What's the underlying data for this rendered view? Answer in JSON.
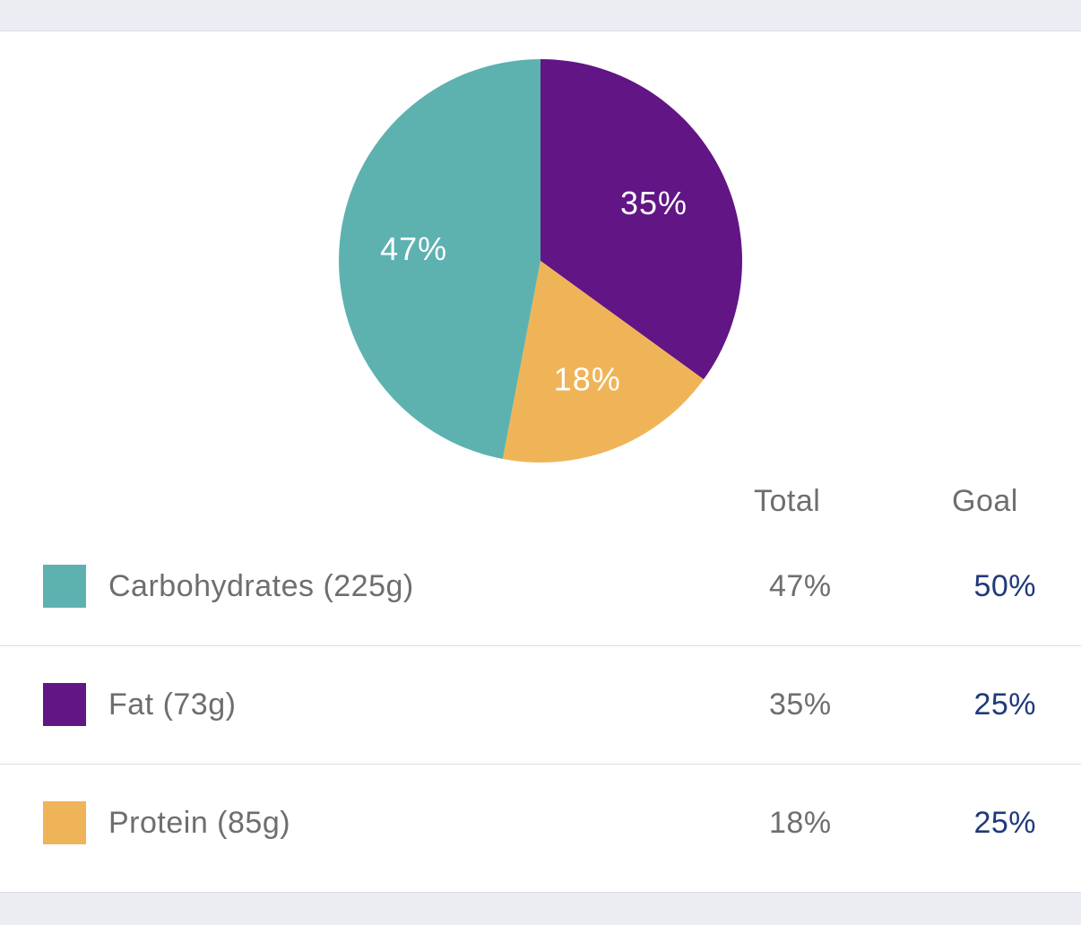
{
  "chart_data": {
    "type": "pie",
    "slices": [
      {
        "label": "Fat",
        "value": 35,
        "display": "35%",
        "color": "#621585"
      },
      {
        "label": "Protein",
        "value": 18,
        "display": "18%",
        "color": "#f0b458"
      },
      {
        "label": "Carbohydrates",
        "value": 47,
        "display": "47%",
        "color": "#5db2b0"
      }
    ],
    "start": "12 o'clock",
    "direction": "clockwise"
  },
  "table": {
    "header_total": "Total",
    "header_goal": "Goal",
    "rows": [
      {
        "label": "Carbohydrates (225g)",
        "total": "47%",
        "goal": "50%",
        "color": "#5db2b0"
      },
      {
        "label": "Fat (73g)",
        "total": "35%",
        "goal": "25%",
        "color": "#621585"
      },
      {
        "label": "Protein (85g)",
        "total": "18%",
        "goal": "25%",
        "color": "#f0b458"
      }
    ]
  },
  "colors": {
    "background": "#ececf3",
    "card": "#ffffff",
    "goal_text": "#1f3a7a",
    "secondary_text": "#6e6e6e"
  }
}
